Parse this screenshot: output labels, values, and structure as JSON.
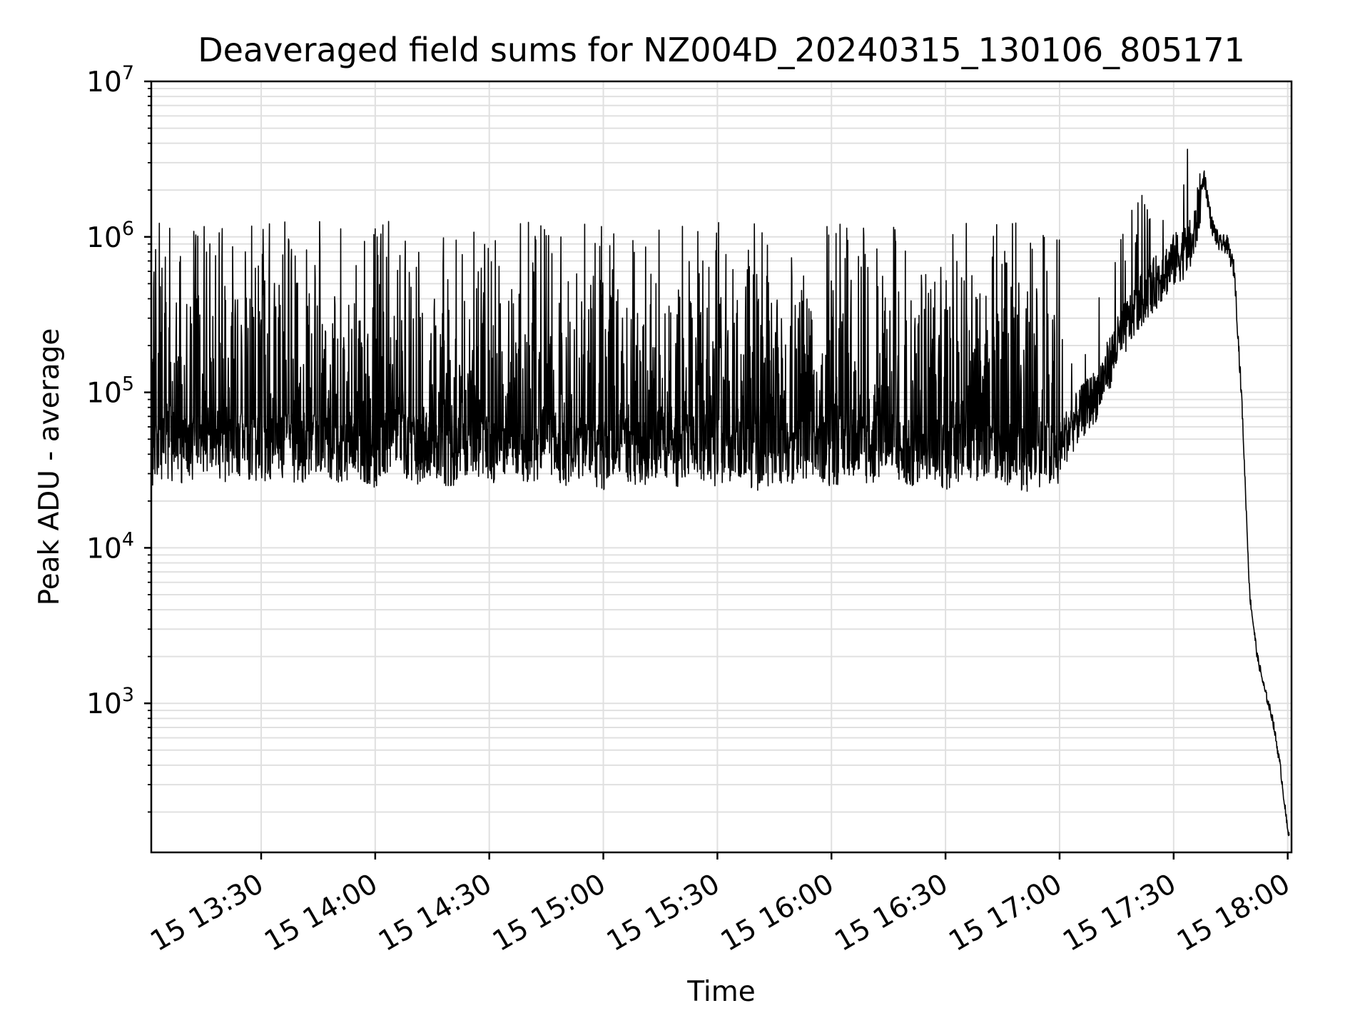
{
  "chart_data": {
    "type": "line",
    "title": "Deaveraged field sums for NZ004D_20240315_130106_805171",
    "xlabel": "Time",
    "ylabel": "Peak ADU - average",
    "y_scale": "log",
    "ylim": [
      110,
      10000000
    ],
    "xlim": [
      "2024-03-15 13:01:06",
      "2024-03-15 18:01:00"
    ],
    "x_tick_labels": [
      "15 13:30",
      "15 14:00",
      "15 14:30",
      "15 15:00",
      "15 15:30",
      "15 16:00",
      "15 16:30",
      "15 17:00",
      "15 17:30",
      "15 18:00"
    ],
    "x_tick_times": [
      "13:30",
      "14:00",
      "14:30",
      "15:00",
      "15:30",
      "16:00",
      "16:30",
      "17:00",
      "17:30",
      "18:00"
    ],
    "y_tick_labels": [
      {
        "base": "10",
        "exp": "3",
        "value": 1000
      },
      {
        "base": "10",
        "exp": "4",
        "value": 10000
      },
      {
        "base": "10",
        "exp": "5",
        "value": 100000
      },
      {
        "base": "10",
        "exp": "6",
        "value": 1000000
      },
      {
        "base": "10",
        "exp": "7",
        "value": 10000000
      }
    ],
    "grid": true,
    "legend": "none",
    "colors": {
      "line": "#000000",
      "grid": "#e0e0e0",
      "axes": "#000000"
    },
    "series": [
      {
        "x": [
          "13:01",
          "13:05",
          "13:10",
          "13:15",
          "13:20",
          "13:25",
          "13:30",
          "13:35",
          "13:40",
          "13:45",
          "13:50",
          "13:55",
          "14:00",
          "14:05",
          "14:10",
          "14:15",
          "14:20",
          "14:25",
          "14:30",
          "14:35",
          "14:40",
          "14:45",
          "14:50",
          "14:55",
          "15:00",
          "15:05",
          "15:10",
          "15:15",
          "15:20",
          "15:25",
          "15:30",
          "15:35",
          "15:40",
          "15:45",
          "15:50",
          "15:55",
          "16:00",
          "16:05",
          "16:10",
          "16:15",
          "16:20",
          "16:25",
          "16:30",
          "16:35",
          "16:40",
          "16:45",
          "16:50",
          "16:55",
          "17:00",
          "17:05",
          "17:10",
          "17:15",
          "17:20",
          "17:25",
          "17:30",
          "17:35",
          "17:38",
          "17:40",
          "17:42",
          "17:44",
          "17:46",
          "17:48",
          "17:50",
          "17:52",
          "17:54",
          "17:56",
          "17:58",
          "18:00"
        ],
        "y": [
          40000,
          90000,
          60000,
          120000,
          70000,
          110000,
          50000,
          100000,
          60000,
          130000,
          70000,
          90000,
          55000,
          140000,
          60000,
          100000,
          50000,
          120000,
          60000,
          95000,
          50000,
          110000,
          60000,
          80000,
          50000,
          90000,
          45000,
          100000,
          55000,
          85000,
          50000,
          95000,
          45000,
          70000,
          60000,
          100000,
          50000,
          110000,
          60000,
          80000,
          50000,
          90000,
          45000,
          100000,
          50000,
          70000,
          40000,
          60000,
          45000,
          70000,
          100000,
          200000,
          350000,
          500000,
          700000,
          900000,
          2500000,
          1200000,
          900000,
          900000,
          600000,
          80000,
          5000,
          2000,
          1200,
          800,
          400,
          150
        ]
      }
    ]
  }
}
